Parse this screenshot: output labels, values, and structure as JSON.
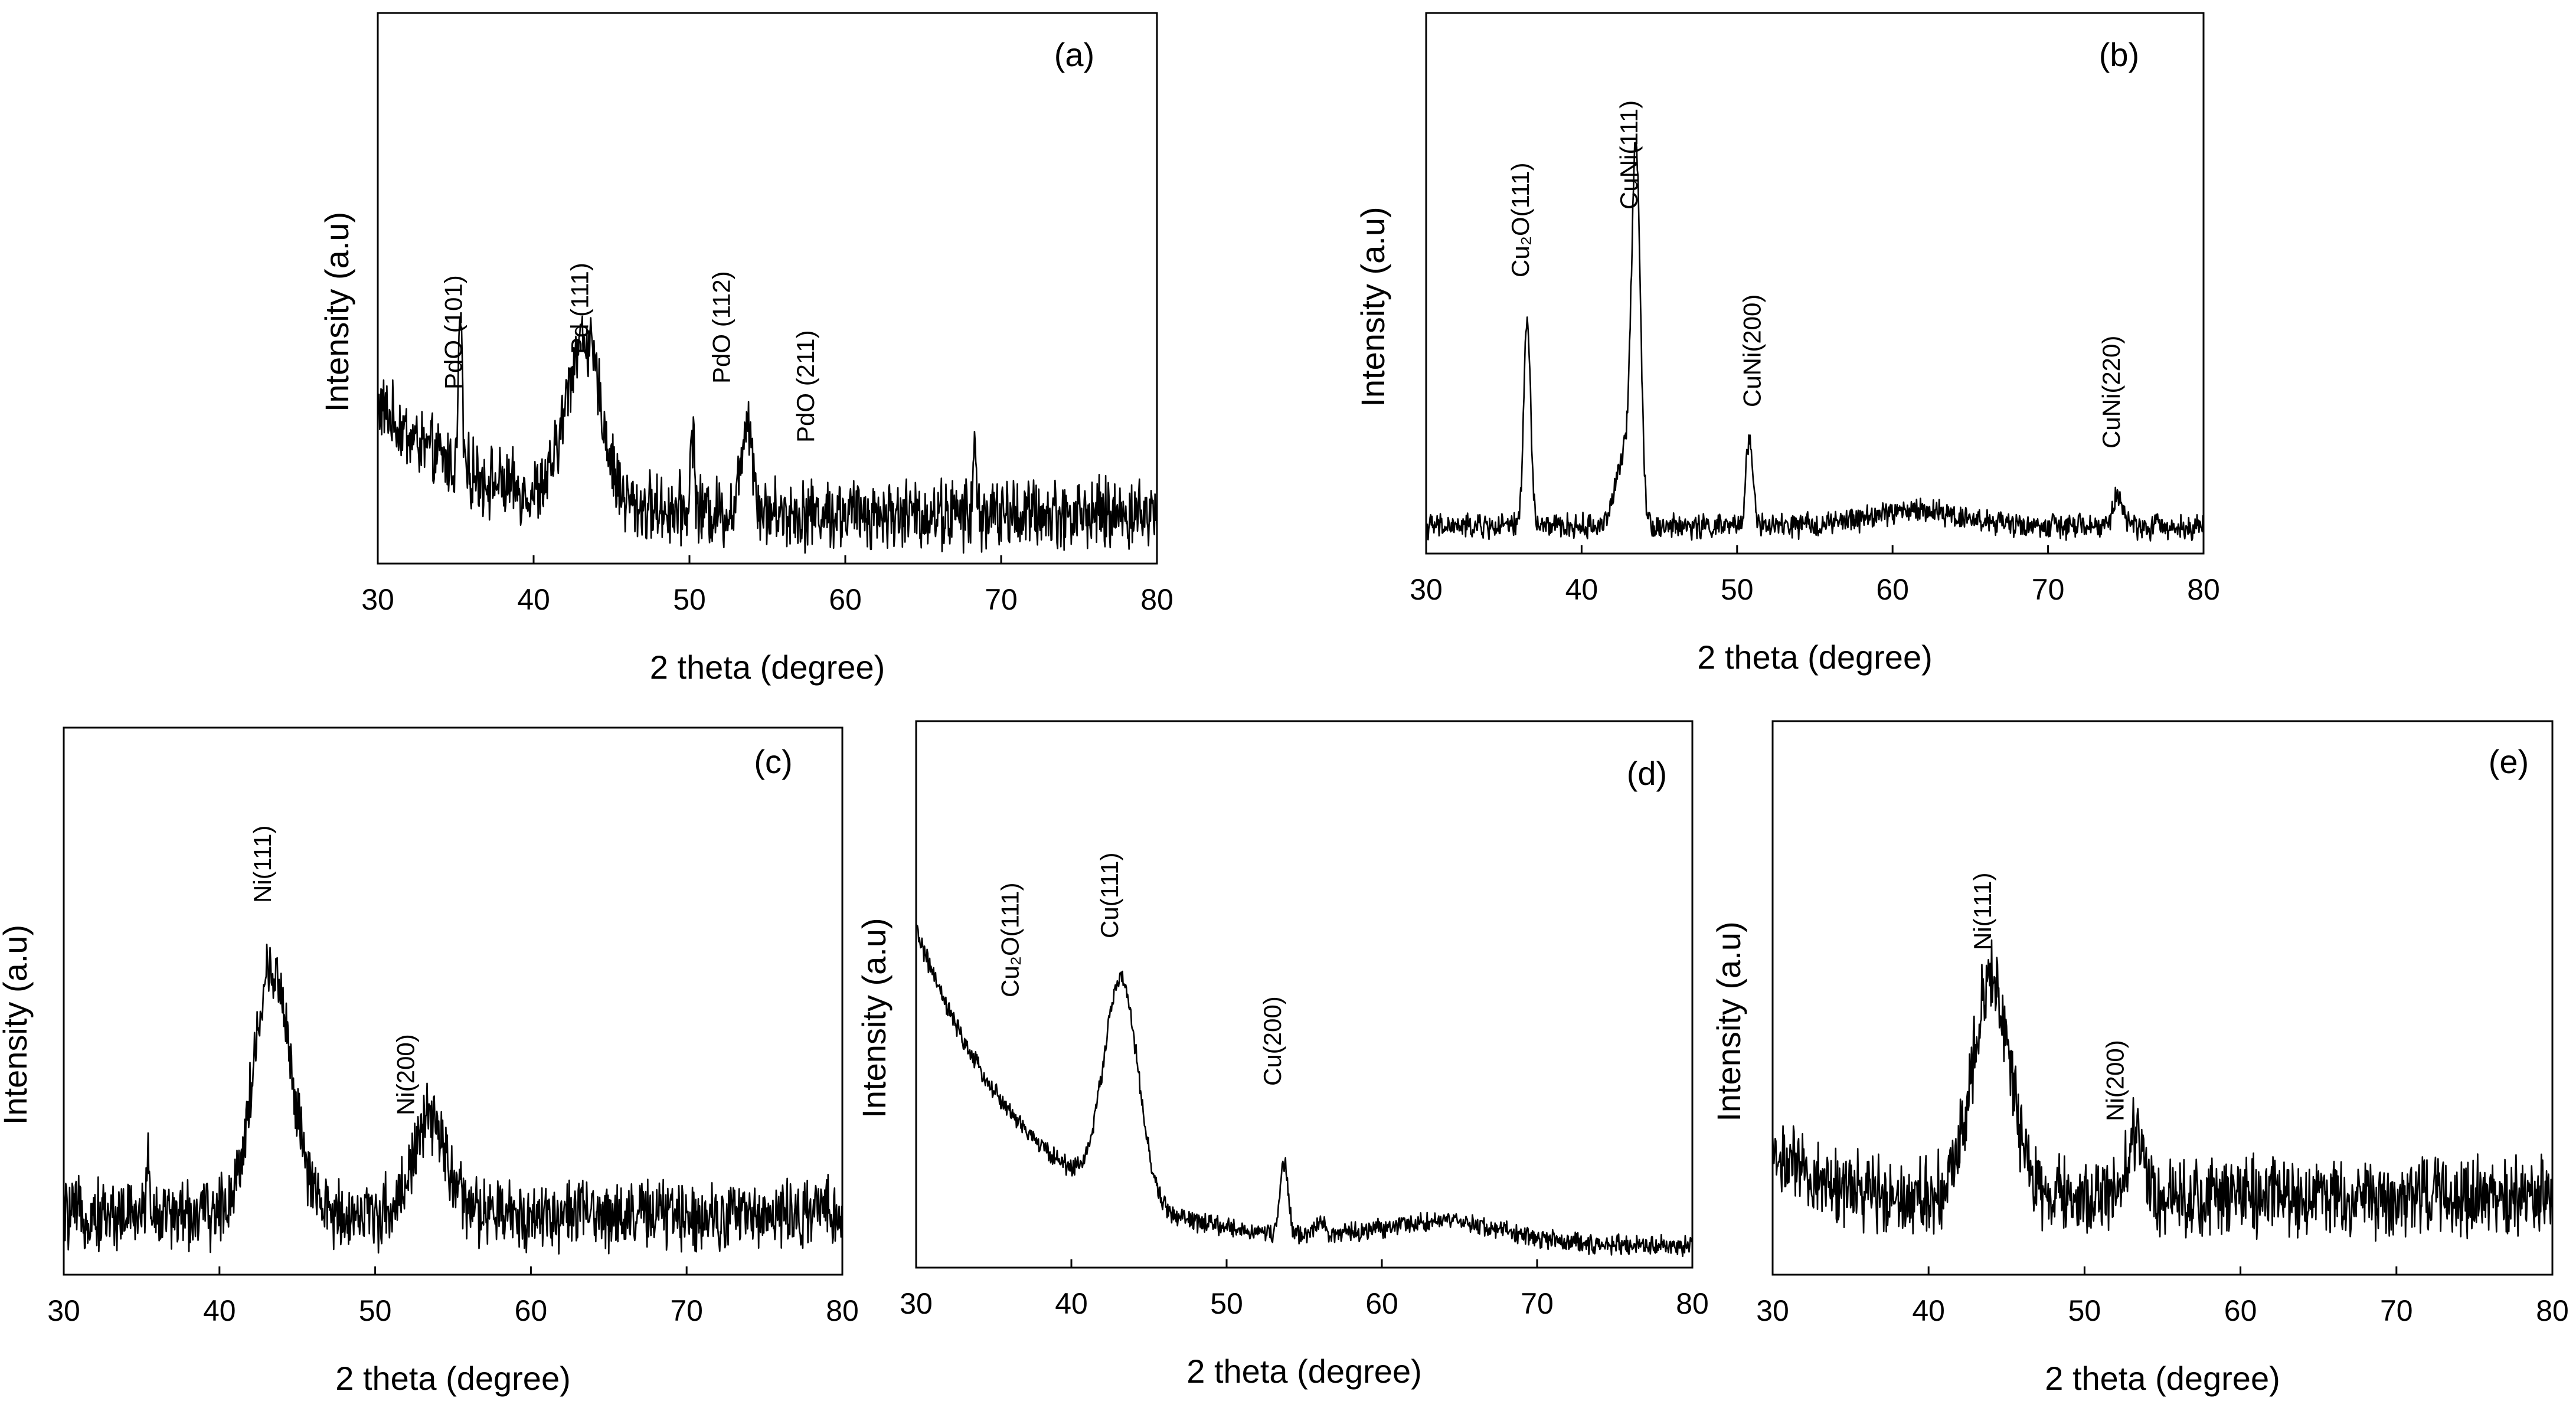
{
  "figure": {
    "style": {
      "line_color": "#000000",
      "background": "#ffffff"
    }
  },
  "chart_data": [
    {
      "panel": "(a)",
      "type": "line",
      "xlabel": "2 theta (degree)",
      "ylabel": "Intensity (a.u)",
      "xlim": [
        30,
        80
      ],
      "ylim": [
        0,
        100
      ],
      "xticks": [
        "30",
        "40",
        "50",
        "60",
        "70",
        "80"
      ],
      "baseline": 9,
      "noise": 5,
      "peaks": [
        {
          "x": 35.3,
          "y": 28,
          "w": 0.12
        },
        {
          "x": 43.2,
          "y": 30,
          "w": 1.1
        },
        {
          "x": 50.2,
          "y": 15,
          "w": 0.12
        },
        {
          "x": 53.7,
          "y": 18,
          "w": 0.35
        },
        {
          "x": 68.3,
          "y": 12,
          "w": 0.1
        }
      ],
      "background_curve": {
        "amp": 20,
        "decay": 6
      },
      "annotations": [
        {
          "x": 35.4,
          "text": "PdO (101)"
        },
        {
          "x": 43.5,
          "text": "Pd (111)"
        },
        {
          "x": 52.6,
          "text": "PdO (112)"
        },
        {
          "x": 58.0,
          "text": "PdO (211)"
        }
      ]
    },
    {
      "panel": "(b)",
      "type": "line",
      "xlabel": "2 theta (degree)",
      "ylabel": "Intensity (a.u)",
      "xlim": [
        30,
        80
      ],
      "ylim": [
        0,
        100
      ],
      "xticks": [
        "30",
        "40",
        "50",
        "60",
        "70",
        "80"
      ],
      "baseline": 5,
      "noise": 1.8,
      "peaks": [
        {
          "x": 36.5,
          "y": 38,
          "w": 0.22
        },
        {
          "x": 42.8,
          "y": 13,
          "w": 0.6
        },
        {
          "x": 43.5,
          "y": 65,
          "w": 0.28
        },
        {
          "x": 50.8,
          "y": 17,
          "w": 0.22
        },
        {
          "x": 61.5,
          "y": 3,
          "w": 3.0
        },
        {
          "x": 74.5,
          "y": 6,
          "w": 0.3
        }
      ],
      "background_curve": {
        "amp": 0,
        "decay": 1
      },
      "annotations": [
        {
          "x": 36.6,
          "text": "Cu₂O(111)"
        },
        {
          "x": 43.6,
          "text": "CuNi(111)"
        },
        {
          "x": 51.5,
          "text": "CuNi(200)"
        },
        {
          "x": 74.6,
          "text": "CuNi(220)"
        }
      ]
    },
    {
      "panel": "(c)",
      "type": "line",
      "xlabel": "2 theta (degree)",
      "ylabel": "Intensity (a.u)",
      "xlim": [
        30,
        80
      ],
      "ylim": [
        0,
        100
      ],
      "xticks": [
        "30",
        "40",
        "50",
        "60",
        "70",
        "80"
      ],
      "baseline": 11,
      "noise": 5,
      "peaks": [
        {
          "x": 43.4,
          "y": 45,
          "w": 1.2
        },
        {
          "x": 53.5,
          "y": 17,
          "w": 1.1
        },
        {
          "x": 35.4,
          "y": 12,
          "w": 0.1
        }
      ],
      "background_curve": {
        "amp": 0,
        "decay": 1
      },
      "annotations": [
        {
          "x": 43.3,
          "text": "Ni(111)"
        },
        {
          "x": 52.5,
          "text": "Ni(200)"
        }
      ]
    },
    {
      "panel": "(d)",
      "type": "line",
      "xlabel": "2 theta (degree)",
      "ylabel": "Intensity (a.u)",
      "xlim": [
        30,
        80
      ],
      "ylim": [
        0,
        100
      ],
      "xticks": [
        "30",
        "40",
        "50",
        "60",
        "70",
        "80"
      ],
      "baseline": 4,
      "noise": 1.4,
      "peaks": [
        {
          "x": 43.2,
          "y": 40,
          "w": 1.1
        },
        {
          "x": 53.7,
          "y": 13,
          "w": 0.25
        },
        {
          "x": 56.0,
          "y": 3,
          "w": 0.3
        },
        {
          "x": 64.0,
          "y": 4,
          "w": 4.0
        }
      ],
      "background_curve": {
        "amp": 58,
        "decay": 7
      },
      "annotations": [
        {
          "x": 36.6,
          "text": "Cu₂O(111)"
        },
        {
          "x": 43.0,
          "text": "Cu(111)"
        },
        {
          "x": 53.5,
          "text": "Cu(200)"
        }
      ]
    },
    {
      "panel": "(e)",
      "type": "line",
      "xlabel": "2 theta (degree)",
      "ylabel": "Intensity (a.u)",
      "xlim": [
        30,
        80
      ],
      "ylim": [
        0,
        100
      ],
      "xticks": [
        "30",
        "40",
        "50",
        "60",
        "70",
        "80"
      ],
      "baseline": 14,
      "noise": 5.5,
      "peaks": [
        {
          "x": 44.0,
          "y": 40,
          "w": 1.2
        },
        {
          "x": 53.3,
          "y": 12,
          "w": 0.5
        }
      ],
      "background_curve": {
        "amp": 8,
        "decay": 3
      },
      "annotations": [
        {
          "x": 44.0,
          "text": "Ni(111)"
        },
        {
          "x": 52.5,
          "text": "Ni(200)"
        }
      ]
    }
  ]
}
